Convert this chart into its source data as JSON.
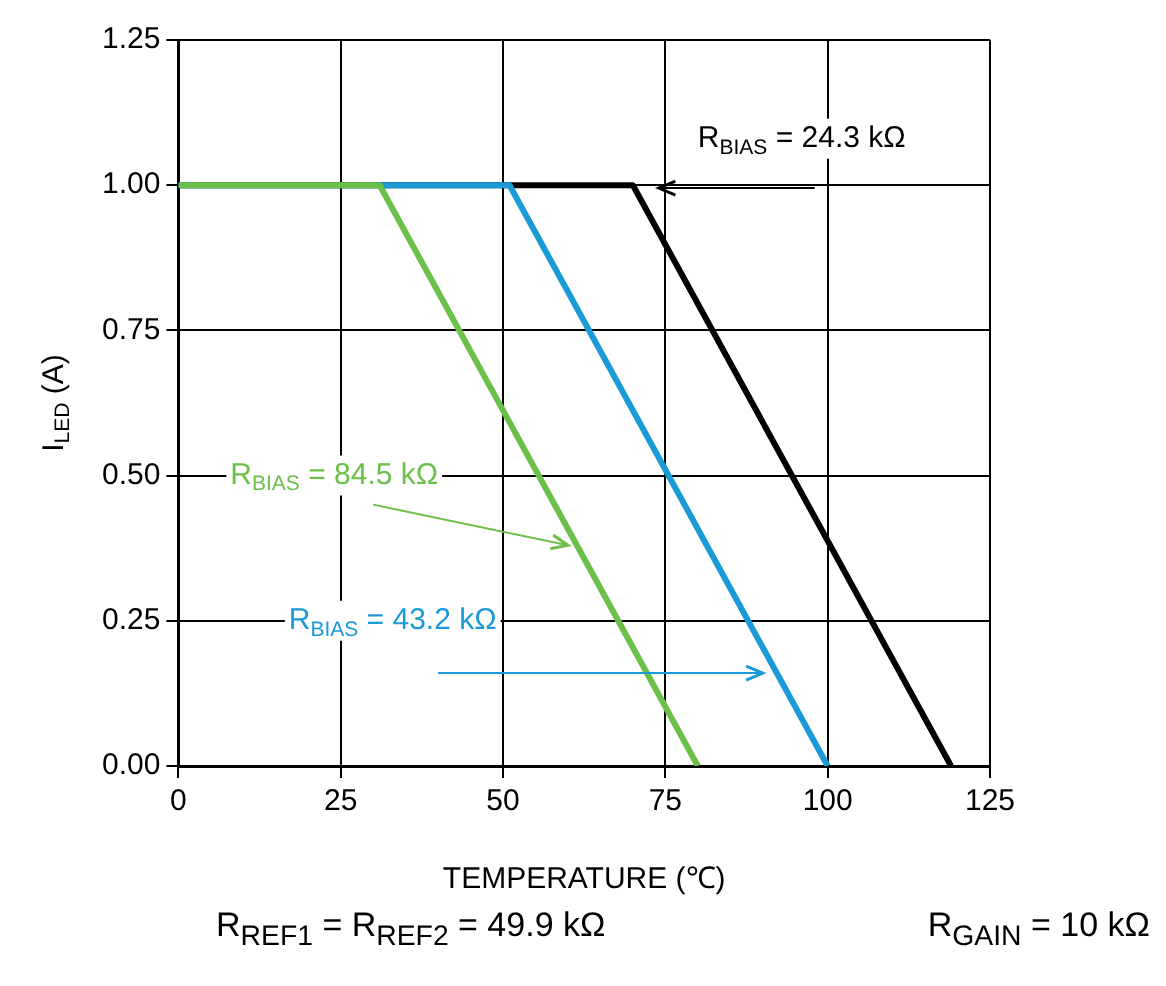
{
  "chart_data": {
    "type": "line",
    "xlabel": "TEMPERATURE (℃)",
    "ylabel": "I$_{LED}$ (A)",
    "xlim": [
      0,
      125
    ],
    "xticks": [
      0,
      25,
      50,
      75,
      100,
      125
    ],
    "ylim": [
      0,
      1.25
    ],
    "yticks": [
      {
        "value": 0,
        "label": "0.00"
      },
      {
        "value": 0.25,
        "label": "0.25"
      },
      {
        "value": 0.5,
        "label": "0.50"
      },
      {
        "value": 0.75,
        "label": "0.75"
      },
      {
        "value": 1,
        "label": "1.00"
      },
      {
        "value": 1.25,
        "label": "1.25"
      }
    ],
    "series": [
      {
        "name": "R$_{BIAS}$ = 84.5 kΩ",
        "color": "#6cc04a",
        "x": [
          0,
          31,
          80
        ],
        "values": [
          1,
          1,
          0
        ]
      },
      {
        "name": "R$_{BIAS}$ = 43.2 kΩ",
        "color": "#1a9ad6",
        "x": [
          0,
          51,
          100
        ],
        "values": [
          1,
          1,
          0
        ]
      },
      {
        "name": "R$_{BIAS}$ = 24.3 kΩ",
        "color": "#000000",
        "x": [
          0,
          70,
          119
        ],
        "values": [
          1,
          1,
          0
        ]
      }
    ],
    "grid": true,
    "legend": false,
    "marker": "none",
    "line_style": "solid",
    "annotations": [
      "R$_{REF1}$ = R$_{REF2}$ = 49.9 kΩ",
      "R$_{GAIN}$ = 10 kΩ"
    ]
  }
}
